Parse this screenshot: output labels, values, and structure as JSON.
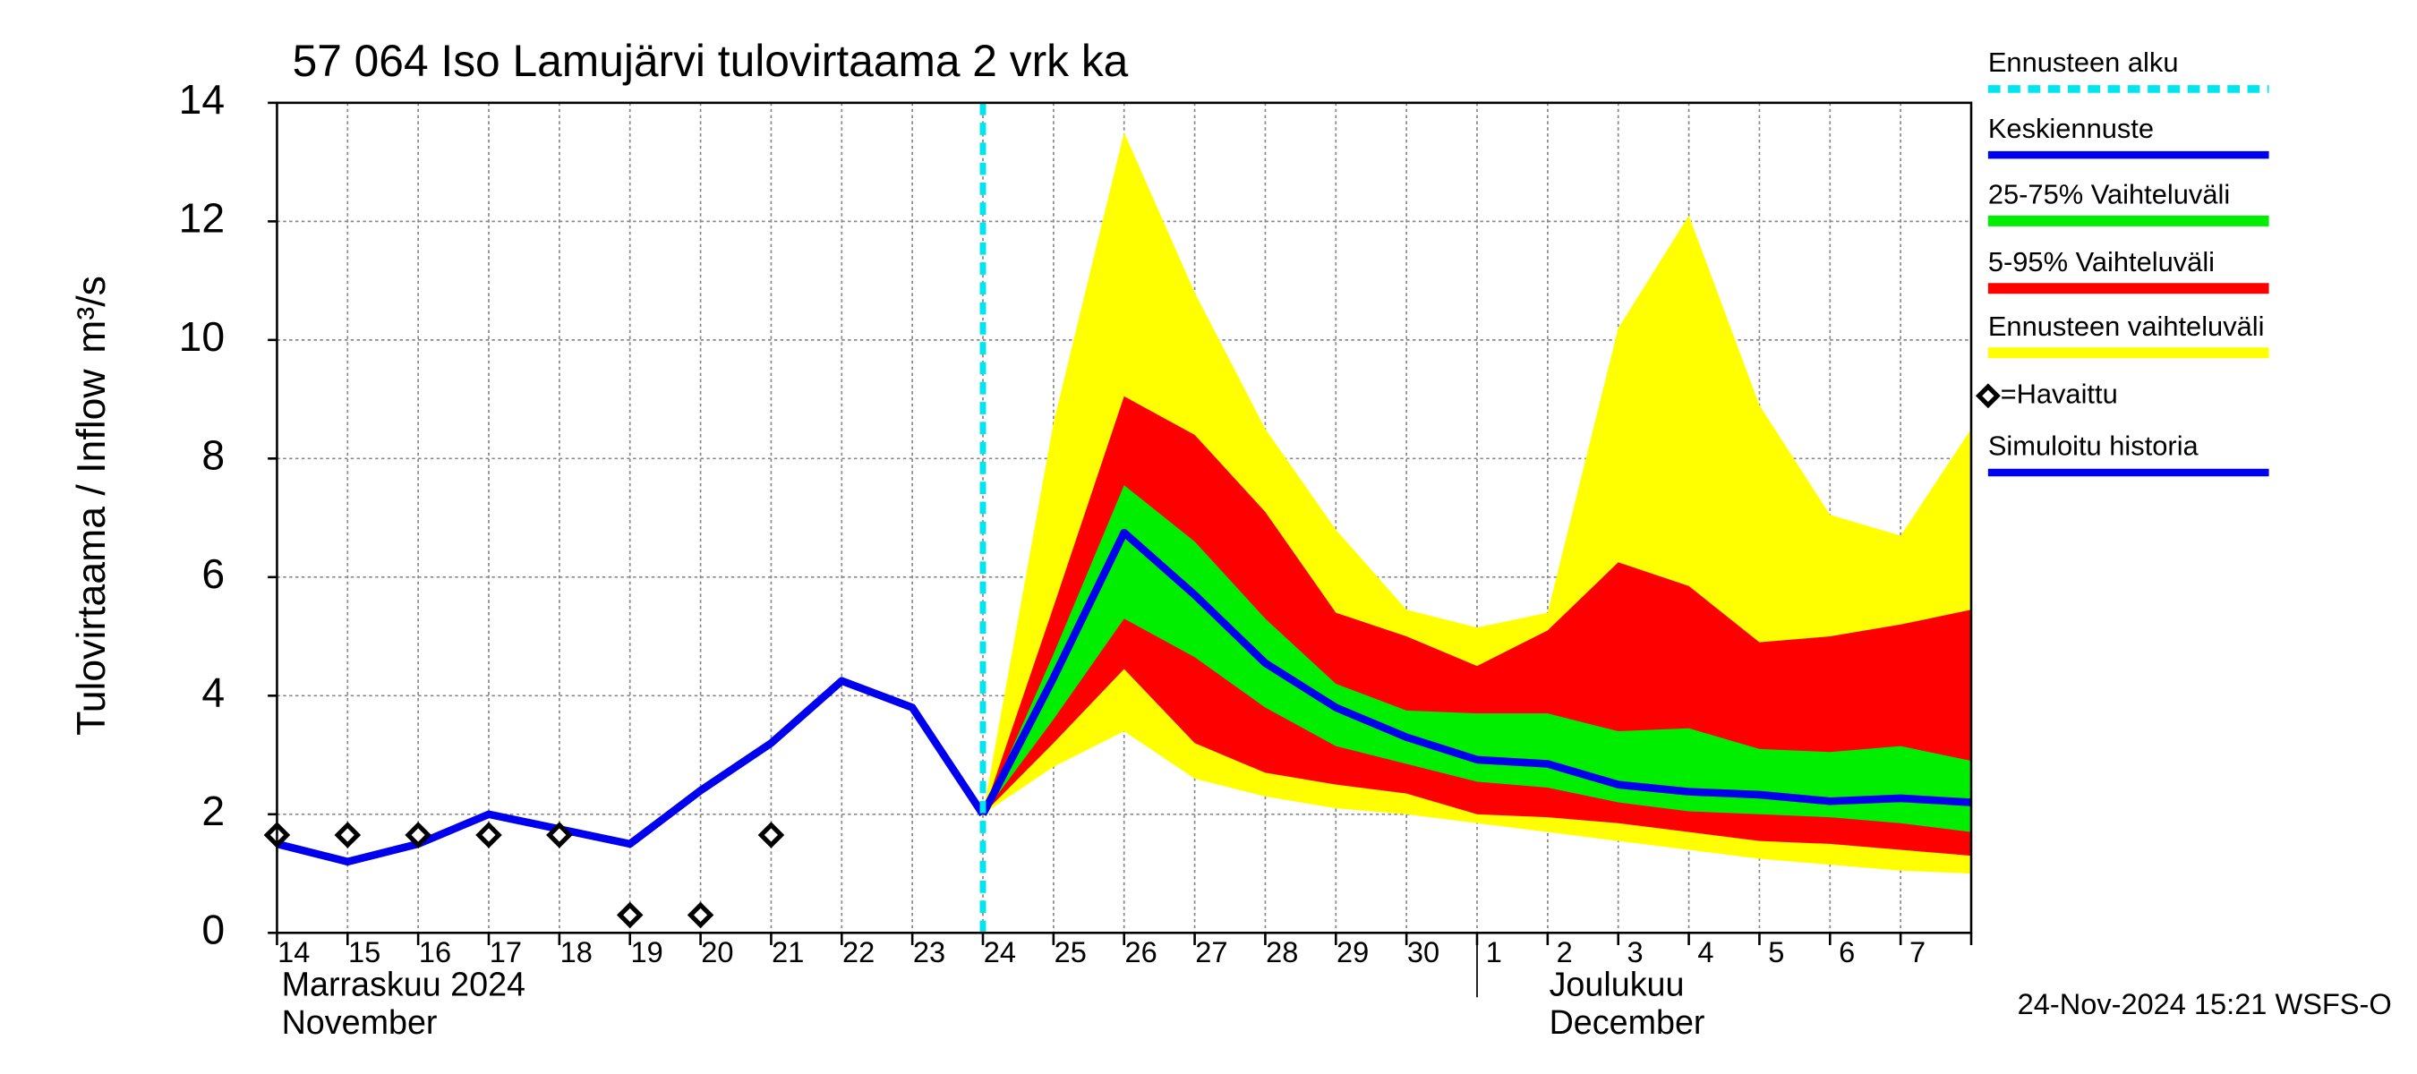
{
  "chart_data": {
    "type": "forecast",
    "title": "57 064 Iso Lamujärvi tulovirtaama 2 vrk ka",
    "y_label": "Tulovirtaama / Inflow",
    "y_unit": "m³/s",
    "categories": [
      "14",
      "15",
      "16",
      "17",
      "18",
      "19",
      "20",
      "21",
      "22",
      "23",
      "24",
      "25",
      "26",
      "27",
      "28",
      "29",
      "30",
      "1",
      "2",
      "3",
      "4",
      "5",
      "6",
      "7",
      null
    ],
    "month_labels": [
      {
        "at": "14",
        "label": "Marraskuu 2024",
        "label_en": "November"
      },
      {
        "at": "1",
        "label": "Joulukuu",
        "label_en": "December"
      }
    ],
    "ylim": [
      0,
      14
    ],
    "yticks": [
      0,
      2,
      4,
      6,
      8,
      10,
      12,
      14
    ],
    "grid": true,
    "series": [
      {
        "name": "Ennusteen alku",
        "kind": "vline",
        "color": "#00e5ee",
        "at": "24"
      },
      {
        "name": "Keskiennuste",
        "kind": "line",
        "color": "#0000ee",
        "values": [
          null,
          null,
          null,
          null,
          null,
          null,
          null,
          null,
          null,
          null,
          2.0,
          4.3,
          6.75,
          5.7,
          4.55,
          3.8,
          3.3,
          2.92,
          2.85,
          2.5,
          2.38,
          2.33,
          2.22,
          2.27,
          2.2
        ]
      },
      {
        "name": "25-75% Vaihteluväli",
        "kind": "band",
        "color": "#00ee00",
        "high": [
          null,
          null,
          null,
          null,
          null,
          null,
          null,
          null,
          null,
          null,
          2.0,
          4.7,
          7.55,
          6.6,
          5.3,
          4.2,
          3.75,
          3.7,
          3.7,
          3.4,
          3.45,
          3.1,
          3.05,
          3.15,
          2.9
        ],
        "low": [
          null,
          null,
          null,
          null,
          null,
          null,
          null,
          null,
          null,
          null,
          2.0,
          3.6,
          5.3,
          4.65,
          3.8,
          3.15,
          2.85,
          2.55,
          2.45,
          2.2,
          2.05,
          2.0,
          1.95,
          1.85,
          1.7
        ]
      },
      {
        "name": "5-95% Vaihteluväli",
        "kind": "band",
        "color": "#ff0000",
        "high": [
          null,
          null,
          null,
          null,
          null,
          null,
          null,
          null,
          null,
          null,
          2.0,
          5.5,
          9.05,
          8.4,
          7.1,
          5.4,
          5.0,
          4.5,
          5.1,
          6.25,
          5.85,
          4.9,
          5.0,
          5.2,
          5.45
        ],
        "low": [
          null,
          null,
          null,
          null,
          null,
          null,
          null,
          null,
          null,
          null,
          2.0,
          3.2,
          4.45,
          3.2,
          2.7,
          2.5,
          2.35,
          2.0,
          1.95,
          1.85,
          1.7,
          1.55,
          1.5,
          1.4,
          1.3
        ]
      },
      {
        "name": "Ennusteen vaihteluväli",
        "kind": "band",
        "color": "#ffff00",
        "high": [
          null,
          null,
          null,
          null,
          null,
          null,
          null,
          null,
          null,
          null,
          2.0,
          8.6,
          13.5,
          10.8,
          8.5,
          6.8,
          5.45,
          5.15,
          5.4,
          10.2,
          12.1,
          8.9,
          7.05,
          6.7,
          8.5
        ],
        "low": [
          null,
          null,
          null,
          null,
          null,
          null,
          null,
          null,
          null,
          null,
          2.0,
          2.8,
          3.4,
          2.6,
          2.3,
          2.1,
          2.0,
          1.85,
          1.7,
          1.55,
          1.4,
          1.25,
          1.15,
          1.05,
          1.0
        ]
      },
      {
        "name": "=Havaittu",
        "kind": "markers",
        "color": "#000000",
        "values": [
          1.65,
          1.65,
          1.65,
          1.65,
          1.65,
          0.3,
          0.3,
          1.65,
          null,
          null,
          null,
          null,
          null,
          null,
          null,
          null,
          null,
          null,
          null,
          null,
          null,
          null,
          null,
          null,
          null
        ]
      },
      {
        "name": "Simuloitu historia",
        "kind": "line",
        "color": "#0000ee",
        "values": [
          1.5,
          1.2,
          1.5,
          2.0,
          1.75,
          1.5,
          2.4,
          3.2,
          4.25,
          3.8,
          2.0,
          null,
          null,
          null,
          null,
          null,
          null,
          null,
          null,
          null,
          null,
          null,
          null,
          null,
          null
        ]
      }
    ],
    "footer": "24-Nov-2024 15:21 WSFS-O"
  }
}
